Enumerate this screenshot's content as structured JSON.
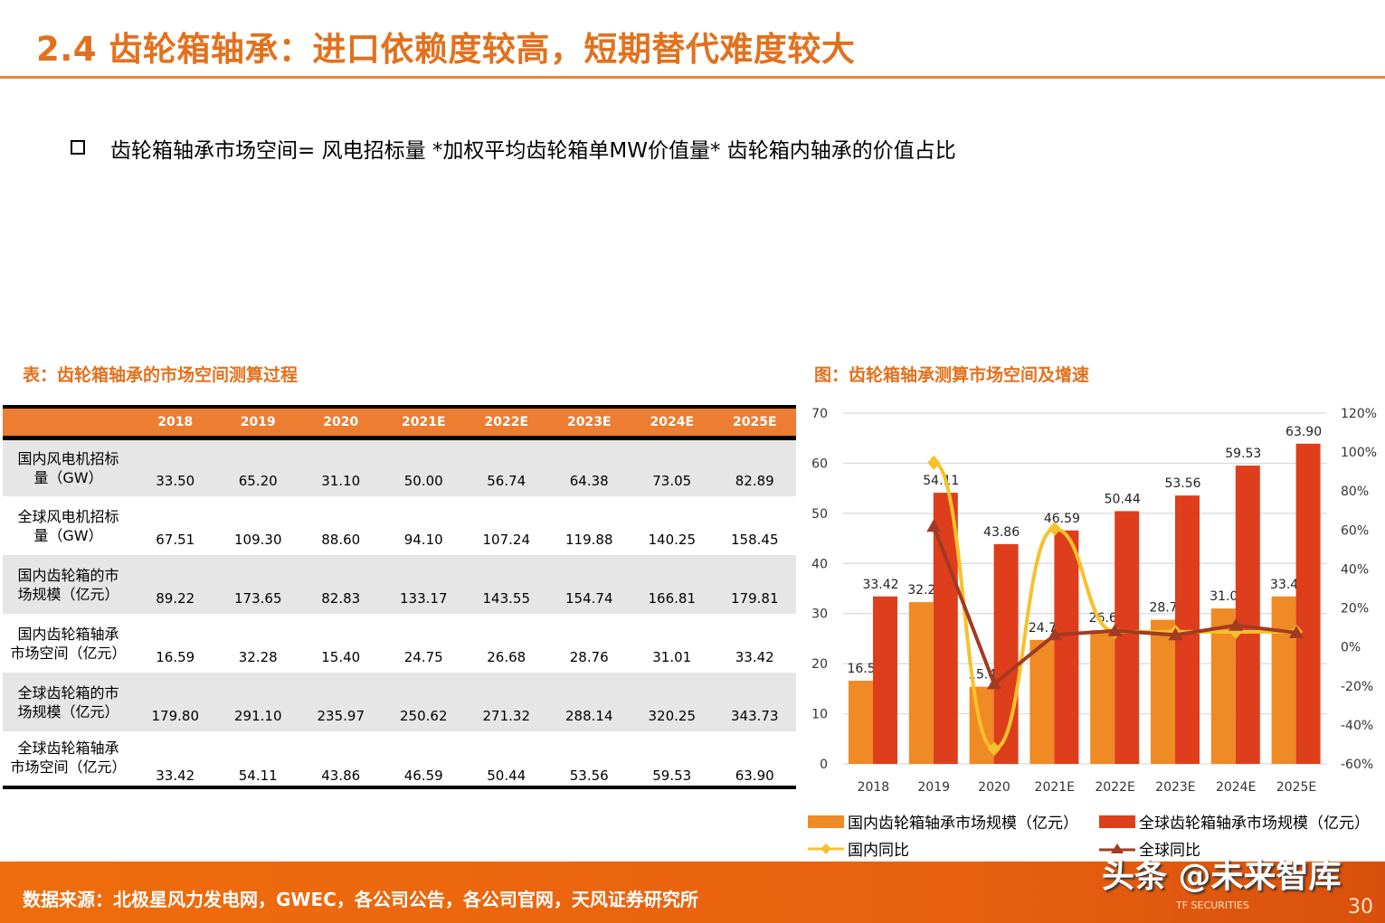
{
  "title": "2.4 齿轮箱轴承：进口依赖度较高，短期替代难度较大",
  "formula": "齿轮箱轴承市场空间= 风电招标量 *加权平均齿轮箱单MW价值量* 齿轮箱内轴承的价值占比",
  "table_caption": "表：齿轮箱轴承的市场空间测算过程",
  "chart_caption": "图：齿轮箱轴承测算市场空间及增速",
  "table": {
    "headers": [
      "",
      "2018",
      "2019",
      "2020",
      "2021E",
      "2022E",
      "2023E",
      "2024E",
      "2025E"
    ],
    "rows": [
      {
        "label": [
          "国内风电机招标",
          "量（GW）"
        ],
        "values": [
          "33.50",
          "65.20",
          "31.10",
          "50.00",
          "56.74",
          "64.38",
          "73.05",
          "82.89"
        ]
      },
      {
        "label": [
          "全球风电机招标",
          "量（GW）"
        ],
        "values": [
          "67.51",
          "109.30",
          "88.60",
          "94.10",
          "107.24",
          "119.88",
          "140.25",
          "158.45"
        ]
      },
      {
        "label": [
          "国内齿轮箱的市",
          "场规模（亿元）"
        ],
        "values": [
          "89.22",
          "173.65",
          "82.83",
          "133.17",
          "143.55",
          "154.74",
          "166.81",
          "179.81"
        ]
      },
      {
        "label": [
          "国内齿轮箱轴承",
          "市场空间（亿元）"
        ],
        "values": [
          "16.59",
          "32.28",
          "15.40",
          "24.75",
          "26.68",
          "28.76",
          "31.01",
          "33.42"
        ]
      },
      {
        "label": [
          "全球齿轮箱的市",
          "场规模（亿元）"
        ],
        "values": [
          "179.80",
          "291.10",
          "235.97",
          "250.62",
          "271.32",
          "288.14",
          "320.25",
          "343.73"
        ]
      },
      {
        "label": [
          "全球齿轮箱轴承",
          "市场空间（亿元）"
        ],
        "values": [
          "33.42",
          "54.11",
          "43.86",
          "46.59",
          "50.44",
          "53.56",
          "59.53",
          "63.90"
        ]
      }
    ]
  },
  "chart_data": {
    "type": "bar+line",
    "categories": [
      "2018",
      "2019",
      "2020",
      "2021E",
      "2022E",
      "2023E",
      "2024E",
      "2025E"
    ],
    "y_left": {
      "min": 0,
      "max": 70,
      "ticks": [
        "0",
        "10",
        "20",
        "30",
        "40",
        "50",
        "60",
        "70"
      ]
    },
    "y_right": {
      "min": -60,
      "max": 120,
      "ticks": [
        "-60%",
        "-40%",
        "-20%",
        "0%",
        "20%",
        "40%",
        "60%",
        "80%",
        "100%",
        "120%"
      ]
    },
    "grid": true,
    "legend_position": "bottom",
    "series": [
      {
        "name": "国内齿轮箱轴承市场规模（亿元）",
        "type": "bar",
        "axis": "left",
        "color": "#f08a24",
        "values": [
          16.59,
          32.28,
          15.4,
          24.75,
          26.68,
          28.76,
          31.01,
          33.42
        ],
        "labels": [
          "16.59",
          "32.28",
          "15.40",
          "24.75",
          "26.68",
          "28.76",
          "31.01",
          "33.42"
        ]
      },
      {
        "name": "全球齿轮箱轴承市场规模（亿元）",
        "type": "bar",
        "axis": "left",
        "color": "#de3e1c",
        "values": [
          33.42,
          54.11,
          43.86,
          46.59,
          50.44,
          53.56,
          59.53,
          63.9
        ],
        "labels": [
          "33.42",
          "54.11",
          "43.86",
          "46.59",
          "50.44",
          "53.56",
          "59.53",
          "63.90"
        ]
      },
      {
        "name": "国内同比",
        "type": "line",
        "axis": "right",
        "color": "#f6c12c",
        "marker": "diamond",
        "values": [
          null,
          94.6,
          -52.3,
          60.7,
          7.8,
          7.8,
          7.8,
          7.8
        ]
      },
      {
        "name": "全球同比",
        "type": "line",
        "axis": "right",
        "color": "#a33a22",
        "marker": "triangle",
        "values": [
          null,
          61.9,
          -18.9,
          6.2,
          8.3,
          6.2,
          11.1,
          7.3
        ]
      }
    ]
  },
  "footer": {
    "source": "数据来源：北极星风力发电网，GWEC，各公司公告，各公司官网，天风证券研究所",
    "watermark": "头条 @未来智库",
    "logo": "TF SECURITIES",
    "page": "30"
  }
}
